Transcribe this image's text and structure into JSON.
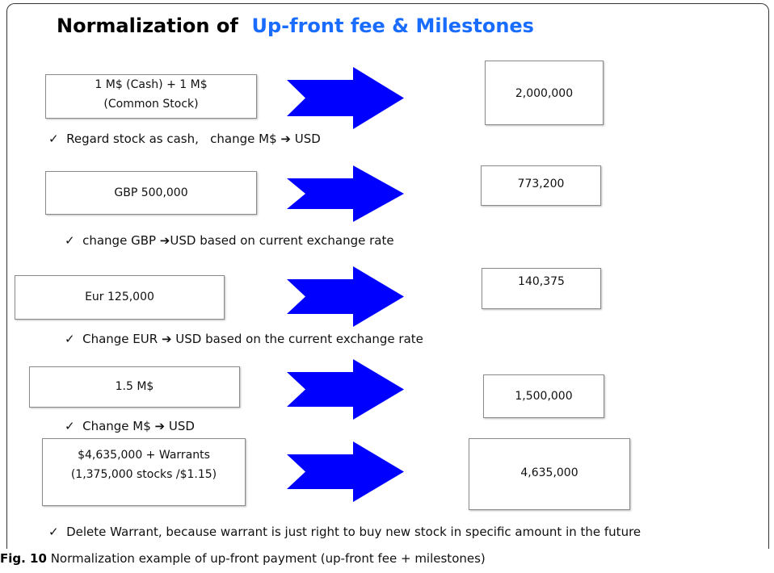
{
  "title": {
    "part1": "Normalization of",
    "part2": "Up-front fee & Milestones"
  },
  "rows": [
    {
      "source": [
        "1 M$ (Cash) + 1 M$",
        "(Common Stock)"
      ],
      "target": "2,000,000",
      "note": "✓  Regard stock as cash,   change M$ ➔ USD"
    },
    {
      "source": [
        "GBP 500,000"
      ],
      "target": "773,200",
      "note": "✓  change GBP ➔USD based on current exchange rate"
    },
    {
      "source": [
        "Eur 125,000"
      ],
      "target": "140,375",
      "note": "✓  Change EUR ➔ USD based on the current exchange rate"
    },
    {
      "source": [
        "1.5 M$"
      ],
      "target": "1,500,000",
      "note": "✓  Change M$ ➔ USD"
    },
    {
      "source": [
        "$4,635,000 + Warrants",
        "(1,375,000 stocks /$1.15)"
      ],
      "target": "4,635,000",
      "note": "✓  Delete Warrant, because warrant is just right to buy new stock in specific amount in the future"
    }
  ],
  "caption": {
    "label": "Fig. 10",
    "text": " Normalization example of up-front payment (up-front fee + milestones)"
  }
}
